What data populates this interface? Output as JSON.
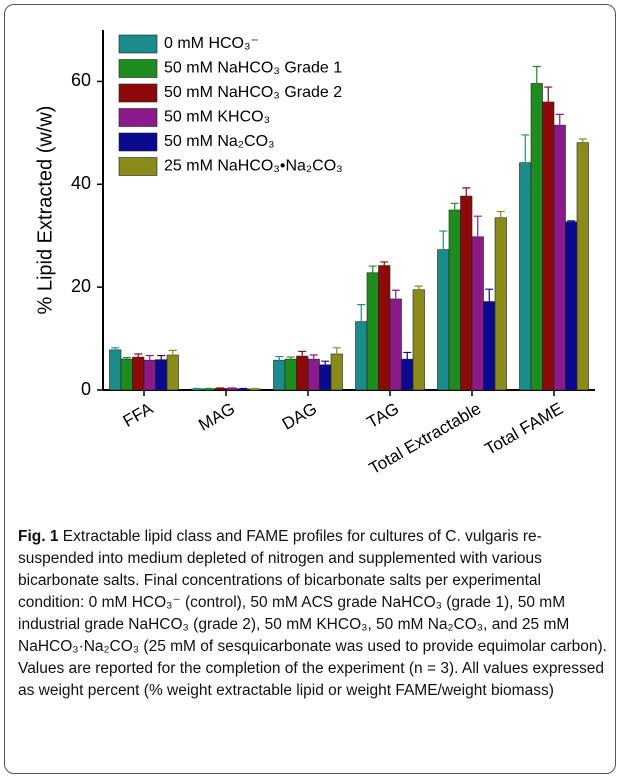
{
  "chart_data": {
    "type": "bar",
    "ylabel": "% Lipid Extracted (w/w)",
    "categories": [
      "FFA",
      "MAG",
      "DAG",
      "TAG",
      "Total Extractable",
      "Total FAME"
    ],
    "ylim": [
      0,
      70
    ],
    "yticks": [
      0,
      20,
      40,
      60
    ],
    "series": [
      {
        "name": "0 mM HCO₃⁻",
        "color": "#1b8b8b",
        "values": [
          7.8,
          0.2,
          5.8,
          13.3,
          27.3,
          44.2
        ],
        "errors": [
          0.4,
          0.1,
          0.7,
          3.3,
          3.6,
          5.4
        ]
      },
      {
        "name": "50 mM NaHCO₃ Grade 1",
        "color": "#1e8c1e",
        "values": [
          6.0,
          0.2,
          6.0,
          22.8,
          35.0,
          59.6
        ],
        "errors": [
          0.3,
          0.1,
          0.4,
          1.3,
          1.3,
          3.3
        ]
      },
      {
        "name": "50 mM NaHCO₃ Grade 2",
        "color": "#8e0a0a",
        "values": [
          6.4,
          0.3,
          6.6,
          24.2,
          37.7,
          56.0
        ],
        "errors": [
          0.6,
          0.1,
          0.9,
          0.7,
          1.6,
          2.9
        ]
      },
      {
        "name": "50 mM KHCO₃",
        "color": "#8b1b8b",
        "values": [
          5.8,
          0.3,
          6.0,
          17.7,
          29.8,
          51.5
        ],
        "errors": [
          0.9,
          0.1,
          0.8,
          1.7,
          4.0,
          2.1
        ]
      },
      {
        "name": "50 mM Na₂CO₃",
        "color": "#0a0a8e",
        "values": [
          5.9,
          0.2,
          4.9,
          6.0,
          17.2,
          32.7
        ],
        "errors": [
          0.8,
          0.1,
          0.7,
          1.3,
          2.4,
          0.2
        ]
      },
      {
        "name": "25 mM NaHCO₃•Na₂CO₃",
        "color": "#8b8b1b",
        "values": [
          6.8,
          0.2,
          7.0,
          19.5,
          33.5,
          48.1
        ],
        "errors": [
          0.9,
          0.1,
          1.2,
          0.7,
          1.2,
          0.7
        ]
      }
    ]
  },
  "caption": {
    "label": "Fig. 1",
    "text": "Extractable lipid class and FAME profiles for cultures of C. vulgaris re-suspended into medium depleted of nitrogen and supplemented with various bicarbonate salts. Final concentrations of bicarbonate salts per experimental condition: 0 mM HCO₃⁻ (control), 50 mM ACS grade NaHCO₃ (grade 1), 50 mM industrial grade NaHCO₃ (grade 2), 50 mM KHCO₃, 50 mM Na₂CO₃, and 25 mM NaHCO₃·Na₂CO₃ (25 mM of sesquicarbonate was used to provide equimolar carbon). Values are reported for the completion of the experiment (n = 3). All values expressed as weight percent (% weight extractable lipid or weight FAME/weight biomass)"
  }
}
